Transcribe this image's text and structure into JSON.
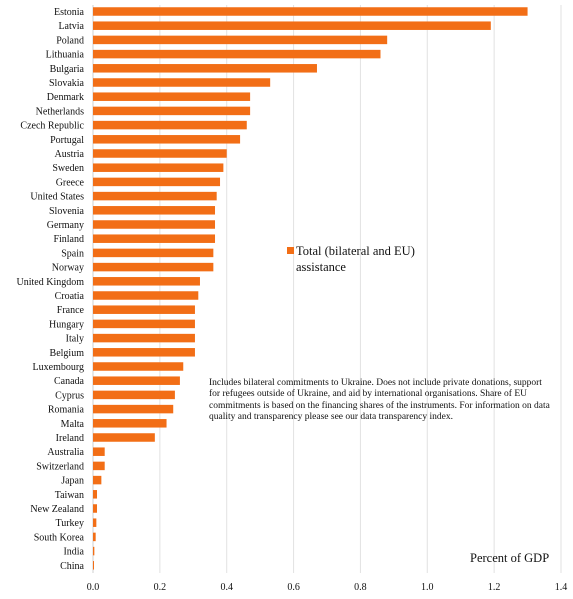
{
  "chart_data": {
    "type": "bar",
    "orientation": "horizontal",
    "categories": [
      "Estonia",
      "Latvia",
      "Poland",
      "Lithuania",
      "Bulgaria",
      "Slovakia",
      "Denmark",
      "Netherlands",
      "Czech Republic",
      "Portugal",
      "Austria",
      "Sweden",
      "Greece",
      "United States",
      "Slovenia",
      "Germany",
      "Finland",
      "Spain",
      "Norway",
      "United Kingdom",
      "Croatia",
      "France",
      "Hungary",
      "Italy",
      "Belgium",
      "Luxembourg",
      "Canada",
      "Cyprus",
      "Romania",
      "Malta",
      "Ireland",
      "Australia",
      "Switzerland",
      "Japan",
      "Taiwan",
      "New Zealand",
      "Turkey",
      "South Korea",
      "India",
      "China"
    ],
    "series": [
      {
        "name": "Total (bilateral and EU) assistance",
        "color": "#f26e16",
        "values": [
          1.3,
          1.19,
          0.88,
          0.86,
          0.67,
          0.53,
          0.47,
          0.47,
          0.46,
          0.44,
          0.4,
          0.39,
          0.38,
          0.37,
          0.365,
          0.365,
          0.365,
          0.36,
          0.36,
          0.32,
          0.315,
          0.305,
          0.305,
          0.305,
          0.305,
          0.27,
          0.26,
          0.245,
          0.24,
          0.22,
          0.185,
          0.035,
          0.035,
          0.025,
          0.012,
          0.012,
          0.01,
          0.008,
          0.004,
          0.002
        ]
      }
    ],
    "xlim": [
      0,
      1.4
    ],
    "xticks": [
      "0.0",
      "0.2",
      "0.4",
      "0.6",
      "0.8",
      "1.0",
      "1.2",
      "1.4"
    ],
    "xlabel": "Percent of GDP",
    "grid": "vertical",
    "legend_position": "center-right",
    "legend_text": "Total (bilateral and EU) assistance",
    "note": "Includes bilateral commitments to Ukraine. Does not include private donations, support for refugees outside of Ukraine, and aid by international organisations. Share of EU commitments is based on the financing shares of the instruments. For information on data quality and transparency please see our data transparency index."
  }
}
